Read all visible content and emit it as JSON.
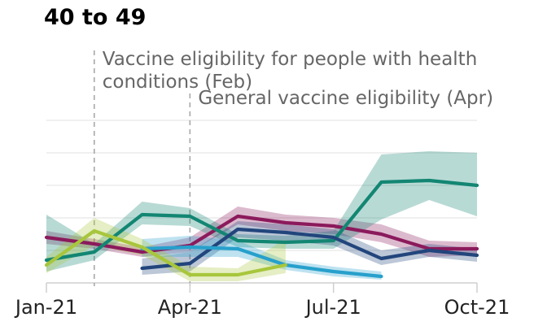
{
  "chart_data": {
    "type": "line",
    "title": "40 to 49",
    "xlabel": "",
    "ylabel": "",
    "x_ticks": [
      {
        "label": "Jan-21",
        "month": 0
      },
      {
        "label": "Apr-21",
        "month": 3
      },
      {
        "label": "Jul-21",
        "month": 6
      },
      {
        "label": "Oct-21",
        "month": 9
      }
    ],
    "x_range": [
      0,
      9
    ],
    "y_range": [
      0,
      5
    ],
    "grid": true,
    "annotations": [
      {
        "lines": [
          "Vaccine eligibility for people with health",
          "conditions (Feb)"
        ],
        "month": 1
      },
      {
        "lines": [
          "General vaccine eligibility (Apr)"
        ],
        "month": 3
      }
    ],
    "series": [
      {
        "color": "#8b1a5c",
        "points": [
          {
            "x": 0,
            "y": 1.4,
            "lo": 1.2,
            "hi": 1.6
          },
          {
            "x": 1,
            "y": 1.2,
            "lo": 1.05,
            "hi": 1.35
          },
          {
            "x": 2,
            "y": 0.95,
            "lo": 0.8,
            "hi": 1.1
          },
          {
            "x": 3,
            "y": 1.15,
            "lo": 0.95,
            "hi": 1.4
          },
          {
            "x": 4,
            "y": 2.05,
            "lo": 1.8,
            "hi": 2.35
          },
          {
            "x": 5,
            "y": 1.85,
            "lo": 1.6,
            "hi": 2.1
          },
          {
            "x": 6,
            "y": 1.75,
            "lo": 1.5,
            "hi": 2.0
          },
          {
            "x": 7,
            "y": 1.5,
            "lo": 1.25,
            "hi": 1.8
          },
          {
            "x": 8,
            "y": 1.05,
            "lo": 0.8,
            "hi": 1.3
          },
          {
            "x": 9,
            "y": 1.05,
            "lo": 0.85,
            "hi": 1.25
          }
        ]
      },
      {
        "color": "#138673",
        "points": [
          {
            "x": 0,
            "y": 0.7,
            "lo": 0.35,
            "hi": 2.1
          },
          {
            "x": 1,
            "y": 0.95,
            "lo": 0.7,
            "hi": 1.2
          },
          {
            "x": 2,
            "y": 2.1,
            "lo": 1.8,
            "hi": 2.5
          },
          {
            "x": 3,
            "y": 2.05,
            "lo": 1.75,
            "hi": 2.3
          },
          {
            "x": 4,
            "y": 1.3,
            "lo": 1.1,
            "hi": 1.5
          },
          {
            "x": 5,
            "y": 1.25,
            "lo": 1.05,
            "hi": 1.45
          },
          {
            "x": 6,
            "y": 1.3,
            "lo": 1.05,
            "hi": 1.6
          },
          {
            "x": 7,
            "y": 3.1,
            "lo": 1.95,
            "hi": 3.95
          },
          {
            "x": 8,
            "y": 3.15,
            "lo": 2.55,
            "hi": 4.05
          },
          {
            "x": 9,
            "y": 3.0,
            "lo": 2.05,
            "hi": 4.0
          }
        ]
      },
      {
        "color": "#22457c",
        "points": [
          {
            "x": 2,
            "y": 0.45,
            "lo": 0.25,
            "hi": 0.75
          },
          {
            "x": 3,
            "y": 0.6,
            "lo": 0.35,
            "hi": 0.95
          },
          {
            "x": 4,
            "y": 1.65,
            "lo": 1.4,
            "hi": 1.9
          },
          {
            "x": 5,
            "y": 1.55,
            "lo": 1.3,
            "hi": 1.8
          },
          {
            "x": 6,
            "y": 1.4,
            "lo": 1.15,
            "hi": 1.65
          },
          {
            "x": 7,
            "y": 0.75,
            "lo": 0.55,
            "hi": 1.0
          },
          {
            "x": 8,
            "y": 1.0,
            "lo": 0.8,
            "hi": 1.2
          },
          {
            "x": 9,
            "y": 0.85,
            "lo": 0.65,
            "hi": 1.05
          }
        ]
      },
      {
        "color": "#27a0cc",
        "points": [
          {
            "x": 2,
            "y": 1.05,
            "lo": 0.8,
            "hi": 1.35
          },
          {
            "x": 3,
            "y": 1.1,
            "lo": 0.8,
            "hi": 1.45
          },
          {
            "x": 4,
            "y": 1.05,
            "lo": 0.8,
            "hi": 1.3
          },
          {
            "x": 5,
            "y": 0.55,
            "lo": 0.4,
            "hi": 0.7
          },
          {
            "x": 6,
            "y": 0.35,
            "lo": 0.2,
            "hi": 0.5
          },
          {
            "x": 7,
            "y": 0.2,
            "lo": 0.1,
            "hi": 0.35
          }
        ]
      },
      {
        "color": "#a8c63c",
        "points": [
          {
            "x": 0,
            "y": 0.55,
            "lo": 0.3,
            "hi": 0.8
          },
          {
            "x": 1,
            "y": 1.6,
            "lo": 1.15,
            "hi": 2.0
          },
          {
            "x": 2,
            "y": 1.1,
            "lo": 0.85,
            "hi": 1.35
          },
          {
            "x": 3,
            "y": 0.25,
            "lo": 0.05,
            "hi": 0.5
          },
          {
            "x": 4,
            "y": 0.25,
            "lo": 0.05,
            "hi": 0.45
          },
          {
            "x": 5,
            "y": 0.55,
            "lo": 0.3,
            "hi": 1.35
          }
        ]
      }
    ]
  }
}
